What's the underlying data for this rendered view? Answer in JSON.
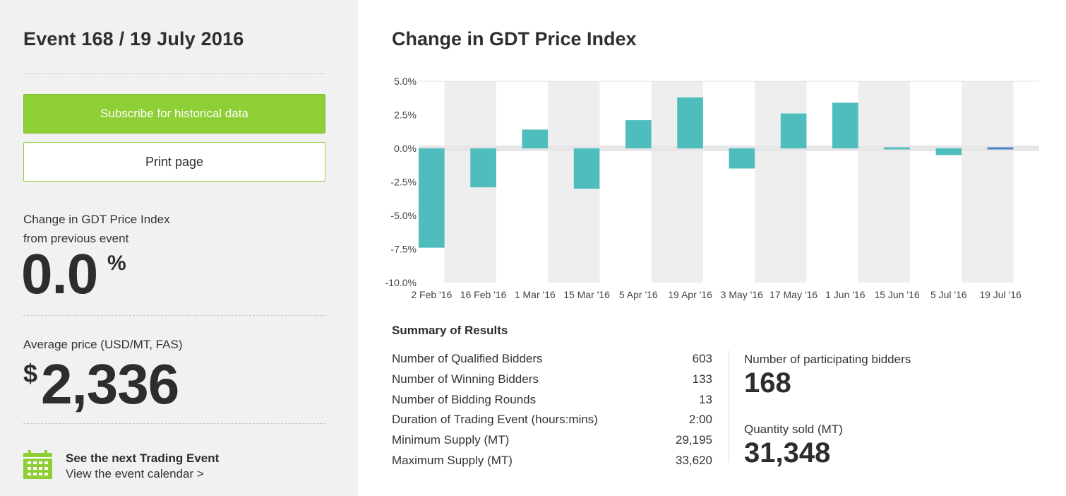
{
  "event": {
    "title": "Event 168 / 19 July 2016"
  },
  "buttons": {
    "subscribe": "Subscribe for historical data",
    "print": "Print page"
  },
  "change": {
    "label_line1": "Change in GDT Price Index",
    "label_line2": "from previous event",
    "value": "0.0",
    "unit": "%"
  },
  "average": {
    "label": "Average price (USD/MT, FAS)",
    "currency": "$",
    "value": "2,336"
  },
  "next_event": {
    "icon": "calendar-icon",
    "title": "See the next Trading Event",
    "link": "View the event calendar >"
  },
  "colors": {
    "accent_green": "#8ecf36",
    "bar_teal": "#4fbcbd",
    "bar_current": "#4a7fc1",
    "stripe_gray": "#eeeeee"
  },
  "chart_data": {
    "type": "bar",
    "title": "Change in GDT Price Index",
    "categories": [
      "2 Feb '16",
      "16 Feb '16",
      "1 Mar '16",
      "15 Mar '16",
      "5 Apr '16",
      "19 Apr '16",
      "3 May '16",
      "17 May '16",
      "1 Jun '16",
      "15 Jun '16",
      "5 Jul '16",
      "19 Jul '16"
    ],
    "values": [
      -7.4,
      -2.9,
      1.4,
      -3.0,
      2.1,
      3.8,
      -1.5,
      2.6,
      3.4,
      -0.1,
      -0.5,
      0.0
    ],
    "y_ticks": [
      "5.0%",
      "2.5%",
      "0.0%",
      "-2.5%",
      "-5.0%",
      "-7.5%",
      "-10.0%"
    ],
    "ylim": [
      -10,
      5
    ],
    "highlight_last": true
  },
  "summary": {
    "title": "Summary of Results",
    "rows": [
      {
        "label": "Number of Qualified Bidders",
        "value": "603"
      },
      {
        "label": "Number of Winning Bidders",
        "value": "133"
      },
      {
        "label": "Number of Bidding Rounds",
        "value": "13"
      },
      {
        "label": "Duration of Trading Event (hours:mins)",
        "value": "2:00"
      },
      {
        "label": "Minimum Supply (MT)",
        "value": "29,195"
      },
      {
        "label": "Maximum Supply (MT)",
        "value": "33,620"
      }
    ],
    "participating_label": "Number of participating bidders",
    "participating_value": "168",
    "quantity_label": "Quantity sold (MT)",
    "quantity_value": "31,348"
  }
}
